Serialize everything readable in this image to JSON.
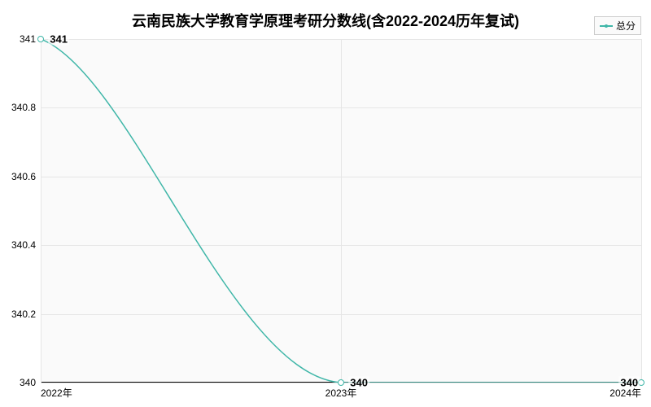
{
  "chart": {
    "type": "line",
    "title": "云南民族大学教育学原理考研分数线(含2022-2024历年复试)",
    "title_fontsize": 18,
    "title_fontweight": "bold",
    "legend": {
      "label": "总分",
      "color": "#3fb6a8",
      "position": "top-right"
    },
    "series": {
      "name": "总分",
      "color": "#3fb6a8",
      "marker_fill": "#ffffff",
      "marker_border": "#3fb6a8",
      "line_width": 1.5,
      "values": [
        341,
        340,
        340
      ]
    },
    "x_axis": {
      "categories": [
        "2022年",
        "2023年",
        "2024年"
      ],
      "label_fontsize": 12
    },
    "y_axis": {
      "min": 340,
      "max": 341,
      "ticks": [
        340,
        340.2,
        340.4,
        340.6,
        340.8,
        341
      ],
      "label_fontsize": 12
    },
    "data_labels": [
      "341",
      "340",
      "340"
    ],
    "background_color": "#fafafa",
    "grid_color": "#e6e6e6",
    "axis_color": "#000000"
  }
}
